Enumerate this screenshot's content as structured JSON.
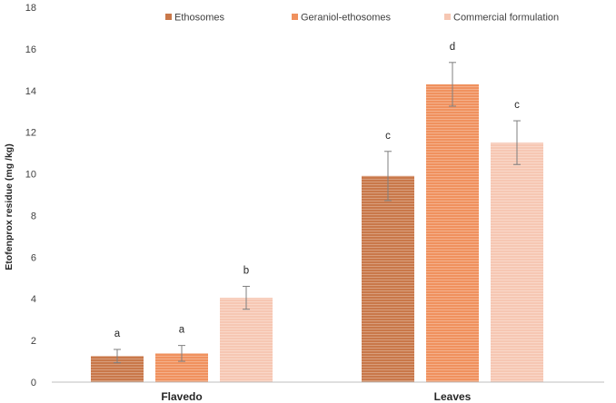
{
  "chart_data": {
    "type": "bar",
    "ylabel": "Etofenprox residue (mg /kg)",
    "ylim": [
      0,
      18
    ],
    "yticks": [
      0,
      2,
      4,
      6,
      8,
      10,
      12,
      14,
      16,
      18
    ],
    "categories": [
      "Flavedo",
      "Leaves"
    ],
    "legend_position": "top",
    "grid": false,
    "series": [
      {
        "name": "Ethosomes",
        "color": "#C9784A",
        "values": [
          1.25,
          9.9
        ],
        "errors": [
          0.32,
          1.18
        ],
        "labels": [
          "a",
          "c"
        ]
      },
      {
        "name": "Geraniol-ethosomes",
        "color": "#F0915E",
        "values": [
          1.38,
          14.3
        ],
        "errors": [
          0.38,
          1.05
        ],
        "labels": [
          "a",
          "d"
        ]
      },
      {
        "name": "Commercial formulation",
        "color": "#F6C7B3",
        "values": [
          4.05,
          11.5
        ],
        "errors": [
          0.55,
          1.05
        ],
        "labels": [
          "b",
          "c"
        ]
      }
    ]
  }
}
